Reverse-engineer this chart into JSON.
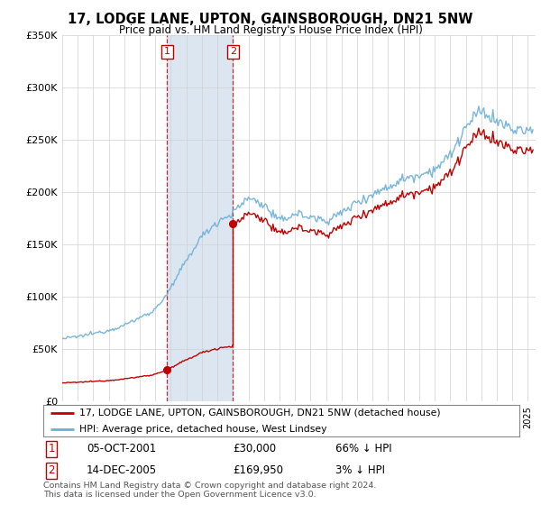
{
  "title": "17, LODGE LANE, UPTON, GAINSBOROUGH, DN21 5NW",
  "subtitle": "Price paid vs. HM Land Registry's House Price Index (HPI)",
  "legend_line1": "17, LODGE LANE, UPTON, GAINSBOROUGH, DN21 5NW (detached house)",
  "legend_line2": "HPI: Average price, detached house, West Lindsey",
  "sale1_label": "1",
  "sale1_date": "05-OCT-2001",
  "sale1_price": "£30,000",
  "sale1_hpi": "66% ↓ HPI",
  "sale2_label": "2",
  "sale2_date": "14-DEC-2005",
  "sale2_price": "£169,950",
  "sale2_hpi": "3% ↓ HPI",
  "footer": "Contains HM Land Registry data © Crown copyright and database right 2024.\nThis data is licensed under the Open Government Licence v3.0.",
  "ylim": [
    0,
    350000
  ],
  "yticks": [
    0,
    50000,
    100000,
    150000,
    200000,
    250000,
    300000,
    350000
  ],
  "ytick_labels": [
    "£0",
    "£50K",
    "£100K",
    "£150K",
    "£200K",
    "£250K",
    "£300K",
    "£350K"
  ],
  "xlim_start": 1995.0,
  "xlim_end": 2025.5,
  "sale1_x": 2001.76,
  "sale1_y": 30000,
  "sale2_x": 2006.0,
  "sale2_y": 169950,
  "hpi_color": "#6baed6",
  "price_color": "#c00000",
  "shade_color": "#dce6f1",
  "background_color": "#ffffff",
  "grid_color": "#d0d0d0",
  "hpi_base_prices": {
    "1995": 60000,
    "1996": 62000,
    "1997": 65000,
    "1998": 68000,
    "1999": 73000,
    "2000": 80000,
    "2001": 88000,
    "2002": 108000,
    "2003": 135000,
    "2004": 158000,
    "2005": 172000,
    "2006": 180000,
    "2007": 195000,
    "2008": 188000,
    "2009": 172000,
    "2010": 180000,
    "2011": 176000,
    "2012": 173000,
    "2013": 180000,
    "2014": 191000,
    "2015": 198000,
    "2016": 205000,
    "2017": 213000,
    "2018": 217000,
    "2019": 222000,
    "2020": 235000,
    "2021": 262000,
    "2022": 278000,
    "2023": 268000,
    "2024": 260000,
    "2025": 258000
  }
}
